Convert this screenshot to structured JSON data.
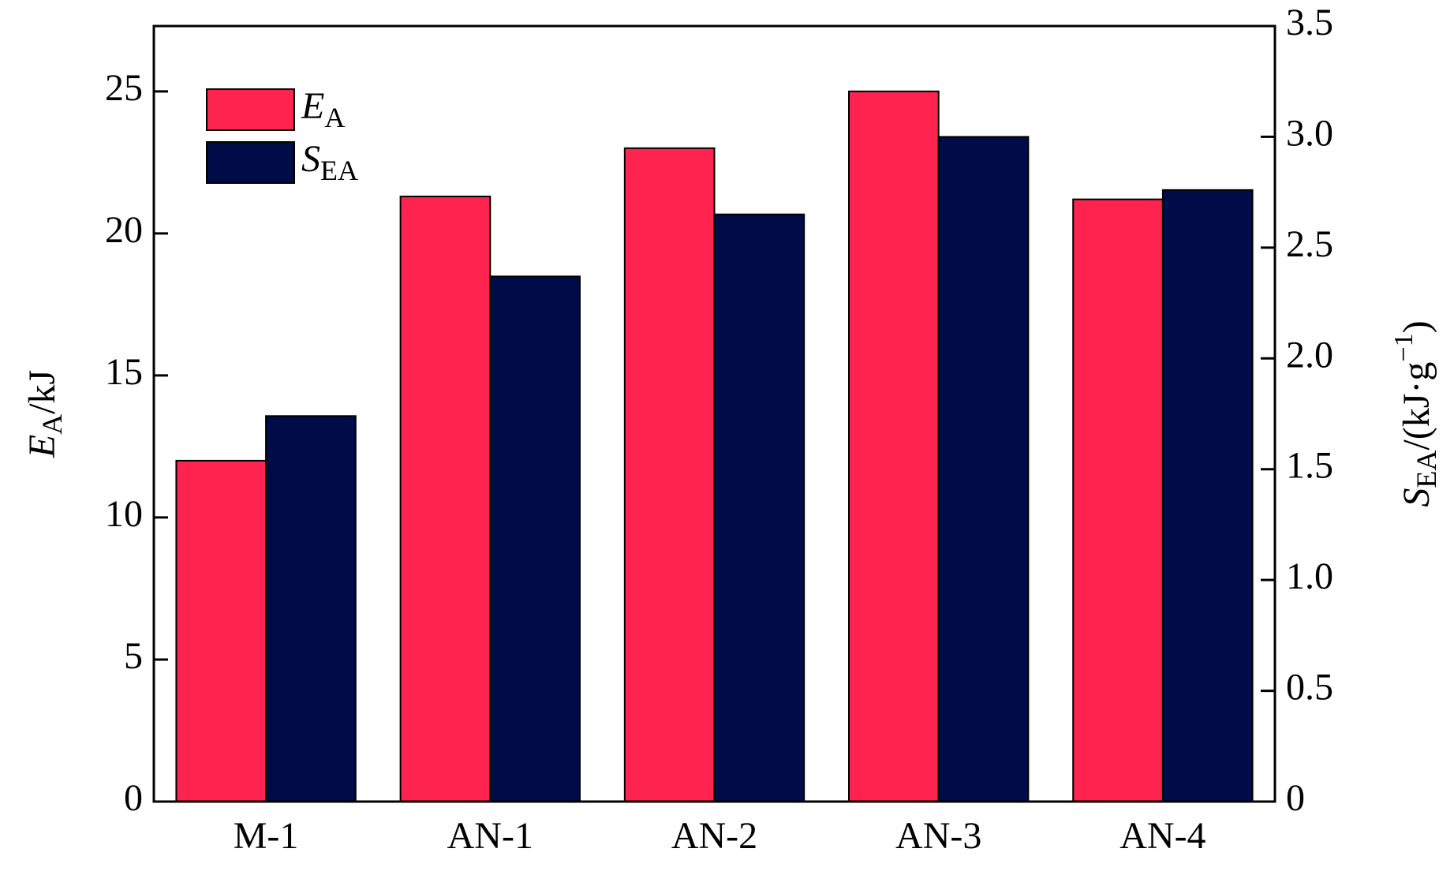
{
  "chart_data": {
    "type": "bar",
    "categories": [
      "M-1",
      "AN-1",
      "AN-2",
      "AN-3",
      "AN-4"
    ],
    "ylabel": {
      "main": "E",
      "sub": "A",
      "rest": "/kJ"
    },
    "y2label": {
      "main": "S",
      "sub": "EA",
      "rest": "/(kJ·g",
      "sup": "−1",
      "end": ")"
    },
    "series": [
      {
        "name": "E",
        "name_sub": "A",
        "color": "#ff2350",
        "values": [
          12.0,
          21.3,
          23.0,
          25.0,
          21.2
        ]
      },
      {
        "name": "S",
        "name_sub": "EA",
        "color": "#000c47",
        "axis": "y2",
        "values": [
          1.74,
          2.37,
          2.65,
          3.0,
          2.76
        ]
      }
    ],
    "ylim": [
      0,
      27.3
    ],
    "yticks": [
      0,
      5,
      10,
      15,
      20,
      25
    ],
    "y2lim": [
      0,
      3.5
    ],
    "y2ticks": [
      0,
      {
        "value": 0.5,
        "label": "0.5"
      },
      {
        "value": 1,
        "label": "1.0"
      },
      {
        "value": 1.5,
        "label": "1.5"
      },
      {
        "value": 2,
        "label": "2.0"
      },
      {
        "value": 2.5,
        "label": "2.5"
      },
      {
        "value": 3,
        "label": "3.0"
      },
      {
        "value": 3.5,
        "label": "3.5"
      }
    ],
    "legend": "upper left"
  }
}
